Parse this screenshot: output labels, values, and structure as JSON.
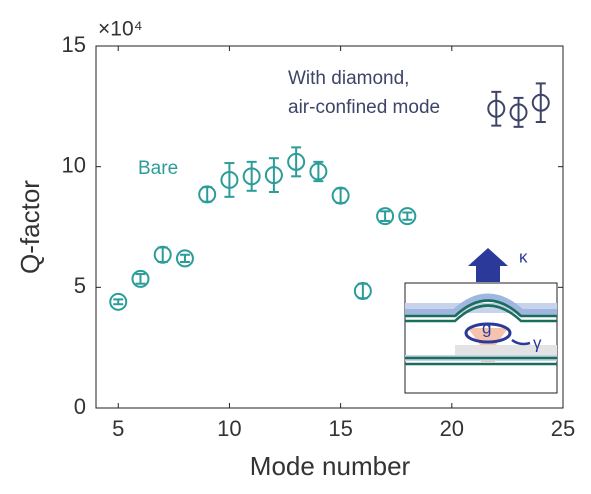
{
  "chart_data": {
    "type": "scatter",
    "x_label": "Mode number",
    "y_label": "Q-factor",
    "y_offset_text": "×10⁴",
    "xlim": [
      4,
      25
    ],
    "xticks": [
      5,
      10,
      15,
      20,
      25
    ],
    "ylim": [
      0,
      15
    ],
    "yticks": [
      0,
      5,
      10,
      15
    ],
    "series": [
      {
        "name": "Bare",
        "color": "#2a9d9a",
        "x": [
          5,
          6,
          7,
          8,
          9,
          10,
          11,
          12,
          13,
          14,
          15,
          16,
          17,
          18
        ],
        "values": [
          4.4,
          5.35,
          6.35,
          6.2,
          8.85,
          9.45,
          9.6,
          9.65,
          10.2,
          9.8,
          8.8,
          4.85,
          7.95,
          7.95
        ],
        "errors": [
          0.1,
          0.2,
          0.3,
          0.15,
          0.3,
          0.7,
          0.6,
          0.7,
          0.6,
          0.4,
          0.3,
          0.3,
          0.2,
          0.15
        ]
      },
      {
        "name": [
          "With diamond,",
          "air-confined mode"
        ],
        "color": "#3d4468",
        "x": [
          22,
          23,
          24
        ],
        "values": [
          12.4,
          12.25,
          12.65
        ],
        "errors": [
          0.7,
          0.6,
          0.8
        ]
      }
    ],
    "inset_labels": [
      "κ",
      "g",
      "γ"
    ]
  }
}
